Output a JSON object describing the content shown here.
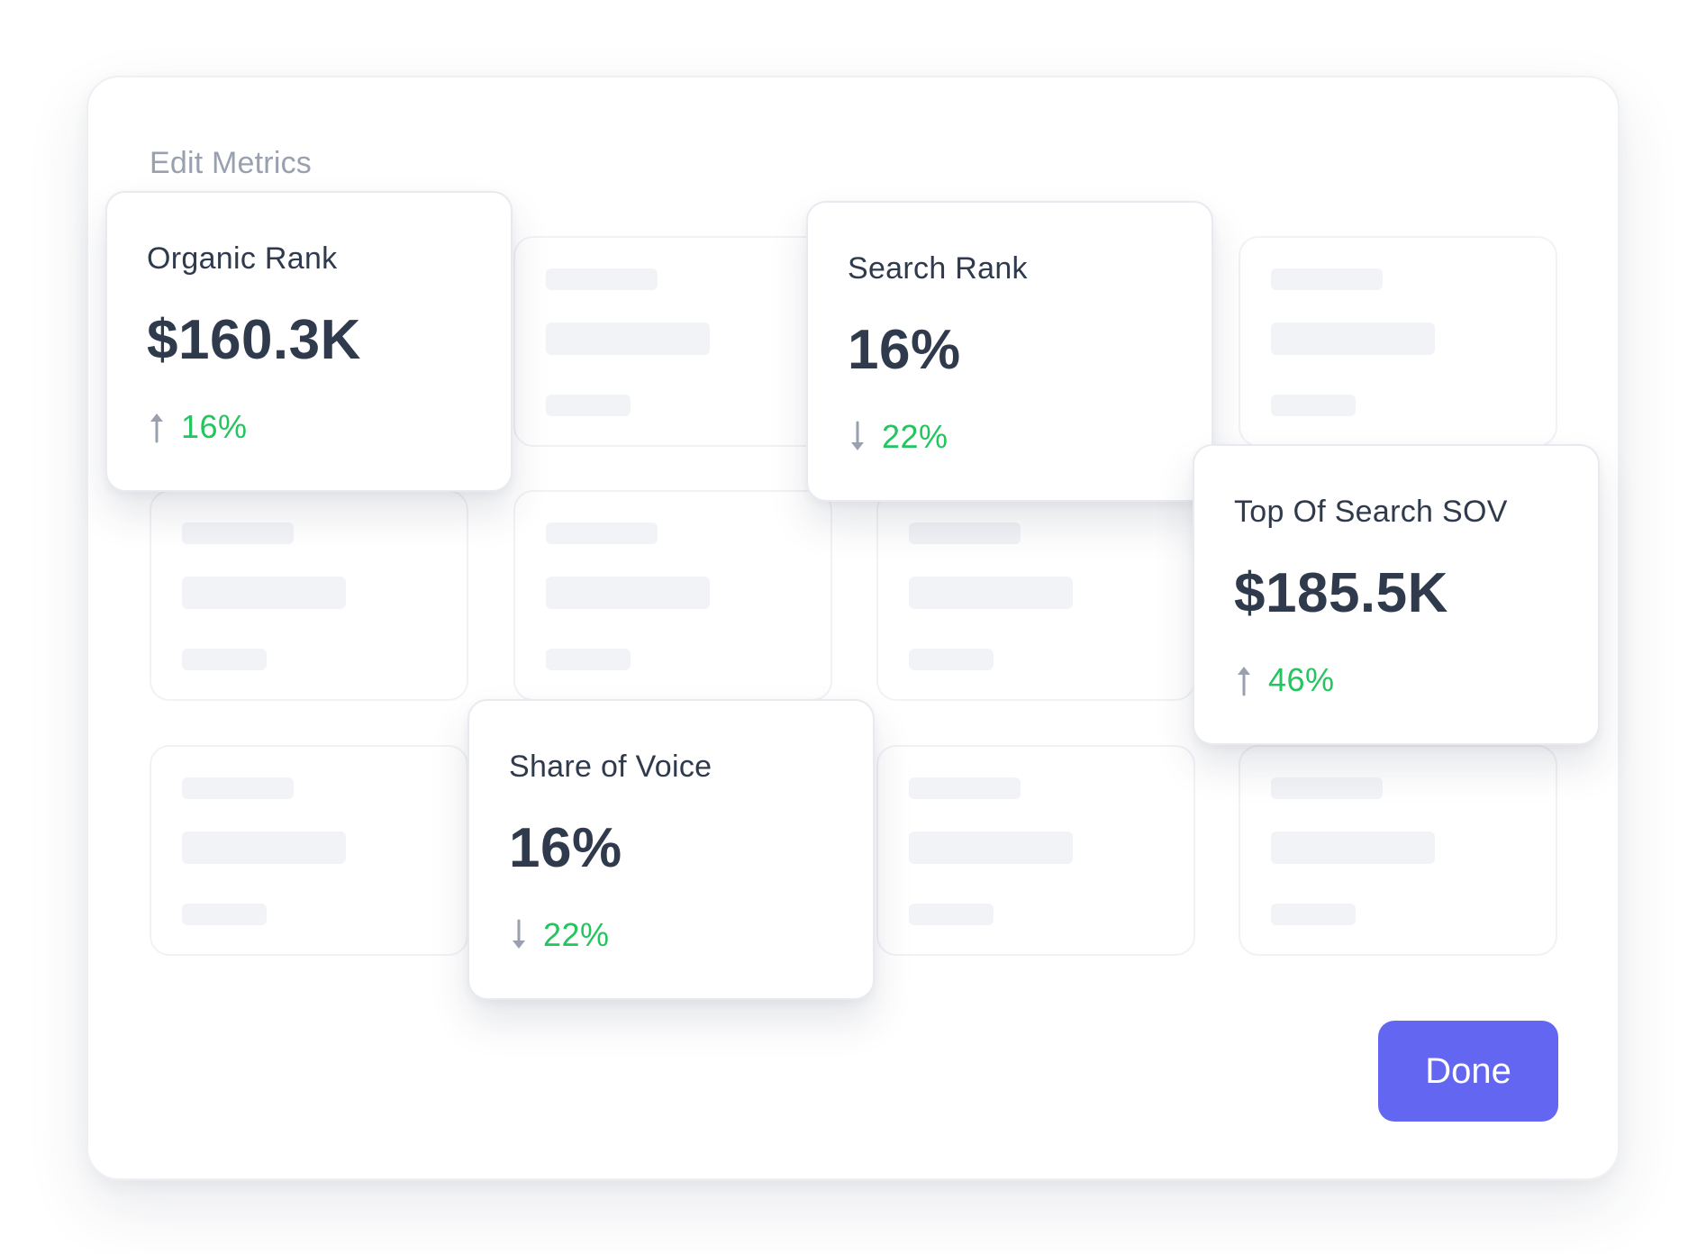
{
  "dialog": {
    "title": "Edit Metrics",
    "done_label": "Done"
  },
  "metrics": [
    {
      "name": "Organic Rank",
      "value": "$160.3K",
      "trend": "up",
      "change": "16%"
    },
    {
      "name": "Search Rank",
      "value": "16%",
      "trend": "down",
      "change": "22%"
    },
    {
      "name": "Top Of Search SOV",
      "value": "$185.5K",
      "trend": "up",
      "change": "46%"
    },
    {
      "name": "Share of Voice",
      "value": "16%",
      "trend": "down",
      "change": "22%"
    }
  ],
  "colors": {
    "accent": "#6266f0",
    "positive": "#22c55e",
    "text": "#2f3a4d",
    "muted": "#9aa1ae",
    "skeleton": "#f2f3f6"
  },
  "icons": {
    "trend_up": "arrow-up-icon",
    "trend_down": "arrow-down-icon"
  }
}
